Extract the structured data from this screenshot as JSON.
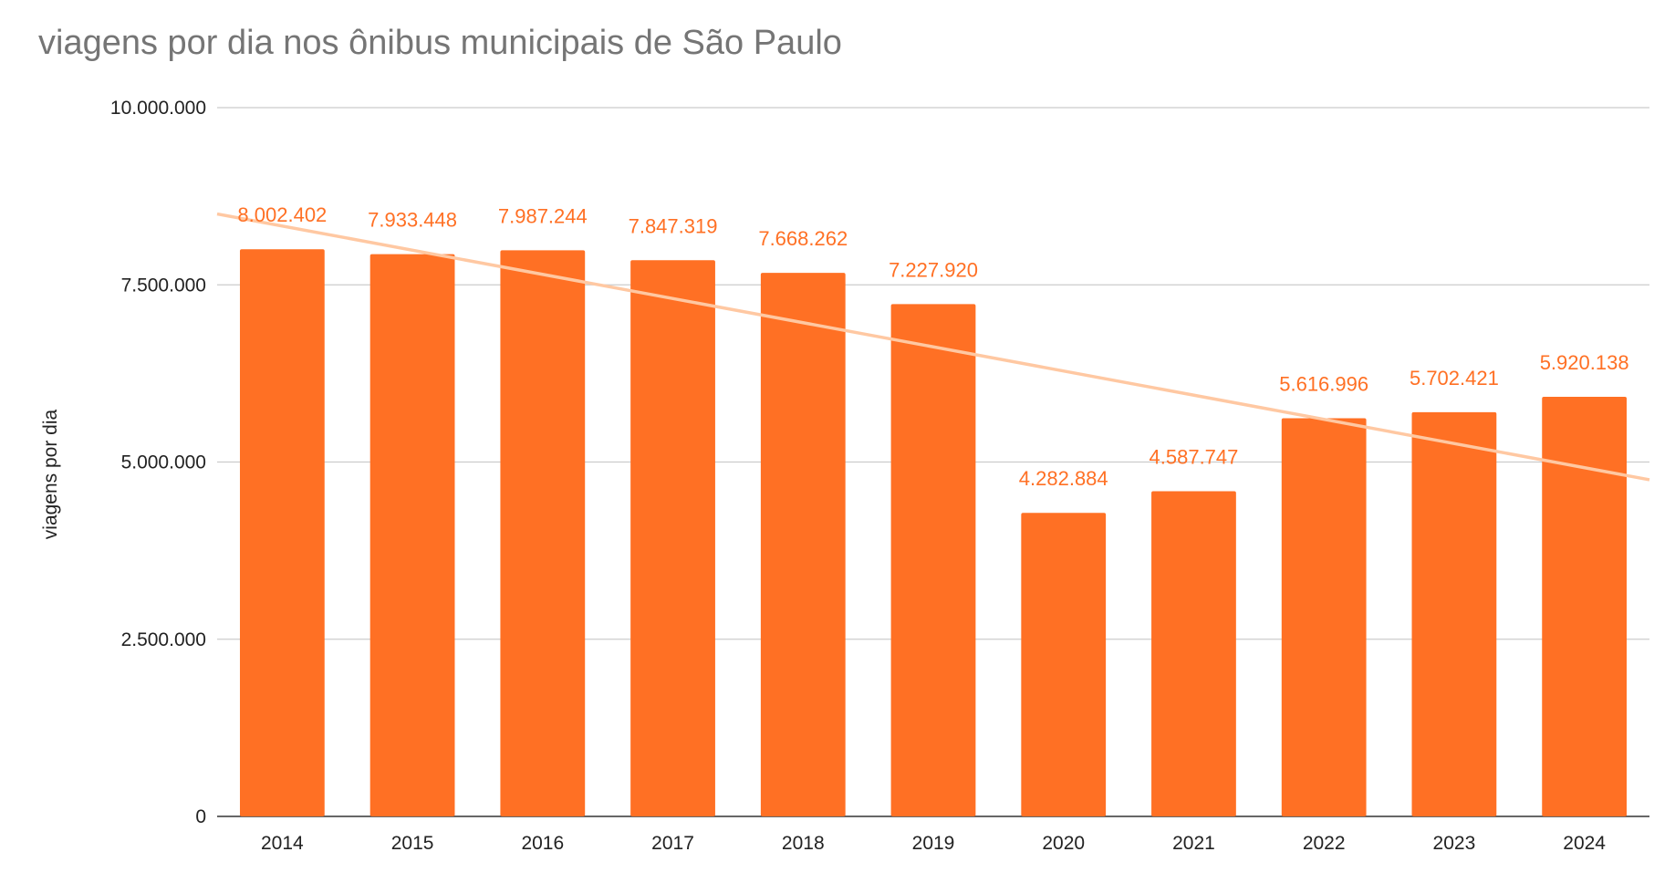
{
  "chart_data": {
    "type": "bar",
    "title": "viagens por dia nos ônibus municipais de São Paulo",
    "xlabel": "",
    "ylabel": "viagens por dia",
    "categories": [
      "2014",
      "2015",
      "2016",
      "2017",
      "2018",
      "2019",
      "2020",
      "2021",
      "2022",
      "2023",
      "2024"
    ],
    "series": [
      {
        "values": [
          8002402,
          7933448,
          7987244,
          7847319,
          7668262,
          7227920,
          4282884,
          4587747,
          5616996,
          5702421,
          5920138
        ],
        "labels": [
          "8.002.402",
          "7.933.448",
          "7.987.244",
          "7.847.319",
          "7.668.262",
          "7.227.920",
          "4.282.884",
          "4.587.747",
          "5.616.996",
          "5.702.421",
          "5.920.138"
        ]
      }
    ],
    "trendline": {
      "type": "linear",
      "start_value": 8500000,
      "end_value": 4750000
    },
    "ylim": [
      0,
      10000000
    ],
    "yticks": [
      0,
      2500000,
      5000000,
      7500000,
      10000000
    ],
    "ytick_labels": [
      "0",
      "2.500.000",
      "5.000.000",
      "7.500.000",
      "10.000.000"
    ],
    "grid": true,
    "legend": "none",
    "colors": {
      "bar": "#ff7024",
      "label": "#ff7024",
      "trendline": "#ffc8a2",
      "grid": "#cccccc",
      "title": "#757575",
      "text": "#222222"
    }
  }
}
